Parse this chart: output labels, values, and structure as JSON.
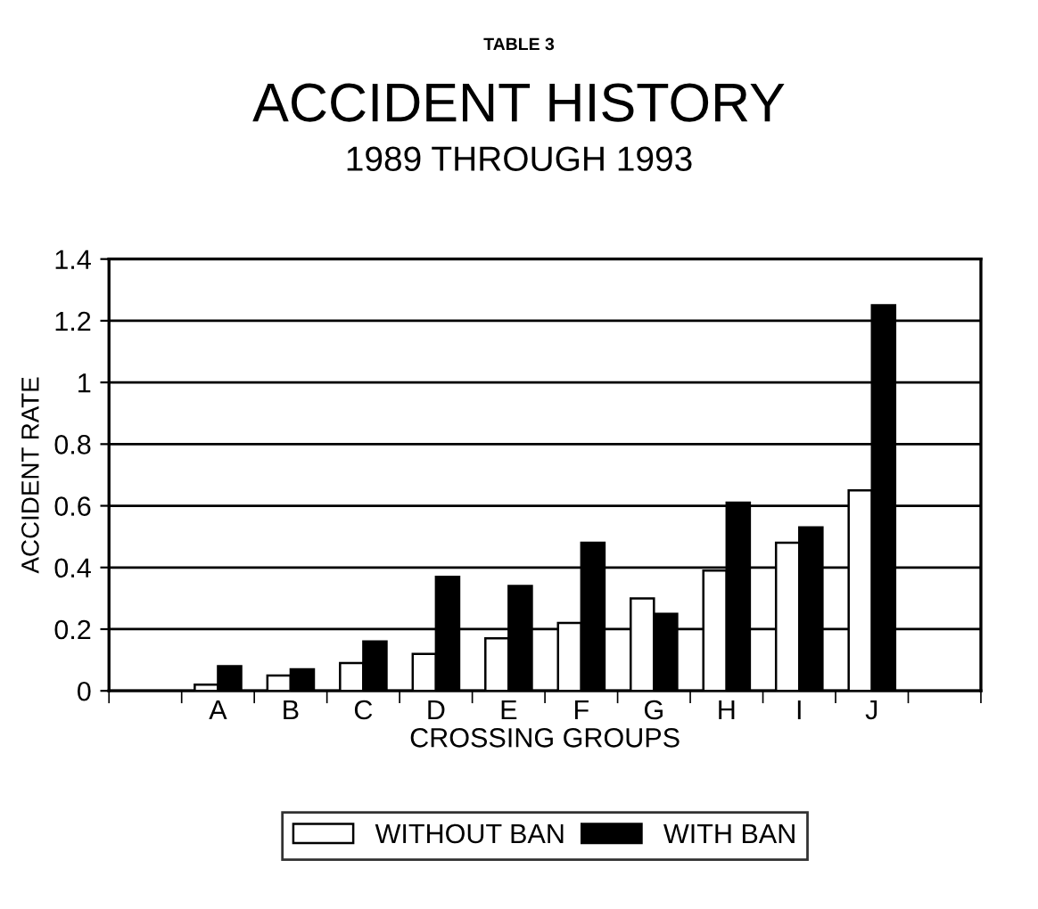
{
  "chart_data": {
    "type": "bar",
    "title": "ACCIDENT HISTORY",
    "subtitle": "1989 THROUGH 1993",
    "annotations": [
      "TABLE 3"
    ],
    "xlabel": "CROSSING GROUPS",
    "ylabel": "ACCIDENT RATE",
    "categories": [
      null,
      "A",
      "B",
      "C",
      "D",
      "E",
      "F",
      "G",
      "H",
      "I",
      "J",
      null
    ],
    "series": [
      {
        "name": "WITHOUT BAN",
        "color": "#ffffff",
        "values": [
          null,
          0.02,
          0.05,
          0.09,
          0.12,
          0.17,
          0.22,
          0.3,
          0.39,
          0.48,
          0.65,
          null
        ]
      },
      {
        "name": "WITH BAN",
        "color": "#000000",
        "values": [
          null,
          0.08,
          0.07,
          0.16,
          0.37,
          0.34,
          0.48,
          0.25,
          0.61,
          0.53,
          1.25,
          null
        ]
      }
    ],
    "ylim": [
      0,
      1.4
    ],
    "yticks": [
      0,
      0.2,
      0.4,
      0.6,
      0.8,
      1,
      1.2,
      1.4
    ],
    "grid": "y",
    "legend": "bottom"
  }
}
